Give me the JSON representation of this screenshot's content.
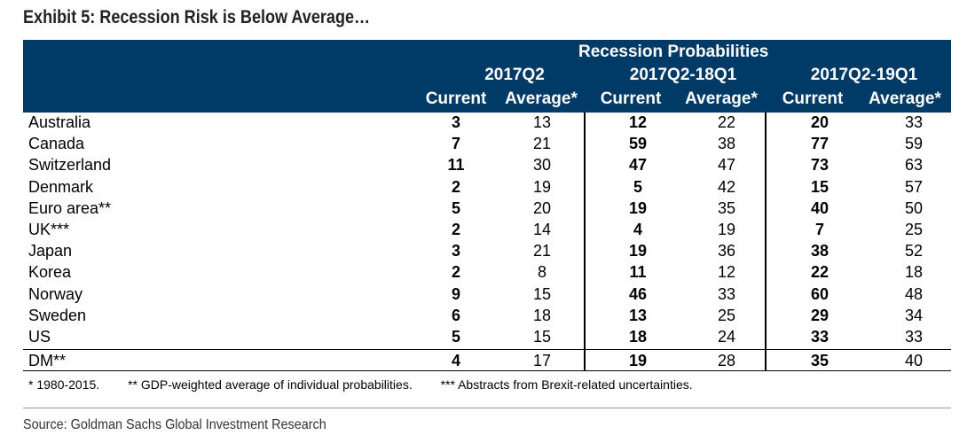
{
  "title": "Exhibit 5: Recession Risk is Below Average…",
  "header": {
    "main": "Recession Probabilities",
    "groups": [
      "2017Q2",
      "2017Q2-18Q1",
      "2017Q2-19Q1"
    ],
    "sub": [
      "Current",
      "Average*",
      "Current",
      "Average*",
      "Current",
      "Average*"
    ]
  },
  "rows": [
    {
      "name": "Australia",
      "v": [
        "3",
        "13",
        "12",
        "22",
        "20",
        "33"
      ]
    },
    {
      "name": "Canada",
      "v": [
        "7",
        "21",
        "59",
        "38",
        "77",
        "59"
      ]
    },
    {
      "name": "Switzerland",
      "v": [
        "11",
        "30",
        "47",
        "47",
        "73",
        "63"
      ]
    },
    {
      "name": "Denmark",
      "v": [
        "2",
        "19",
        "5",
        "42",
        "15",
        "57"
      ]
    },
    {
      "name": "Euro area**",
      "v": [
        "5",
        "20",
        "19",
        "35",
        "40",
        "50"
      ]
    },
    {
      "name": "UK***",
      "v": [
        "2",
        "14",
        "4",
        "19",
        "7",
        "25"
      ]
    },
    {
      "name": "Japan",
      "v": [
        "3",
        "21",
        "19",
        "36",
        "38",
        "52"
      ]
    },
    {
      "name": "Korea",
      "v": [
        "2",
        "8",
        "11",
        "12",
        "22",
        "18"
      ]
    },
    {
      "name": "Norway",
      "v": [
        "9",
        "15",
        "46",
        "33",
        "60",
        "48"
      ]
    },
    {
      "name": "Sweden",
      "v": [
        "6",
        "18",
        "13",
        "25",
        "29",
        "34"
      ]
    },
    {
      "name": "US",
      "v": [
        "5",
        "15",
        "18",
        "24",
        "33",
        "33"
      ]
    }
  ],
  "total": {
    "name": "DM**",
    "v": [
      "4",
      "17",
      "19",
      "28",
      "35",
      "40"
    ]
  },
  "notes": [
    "* 1980-2015.",
    "** GDP-weighted average of individual probabilities.",
    "*** Abstracts from Brexit-related uncertainties."
  ],
  "source": "Source: Goldman Sachs Global Investment Research"
}
